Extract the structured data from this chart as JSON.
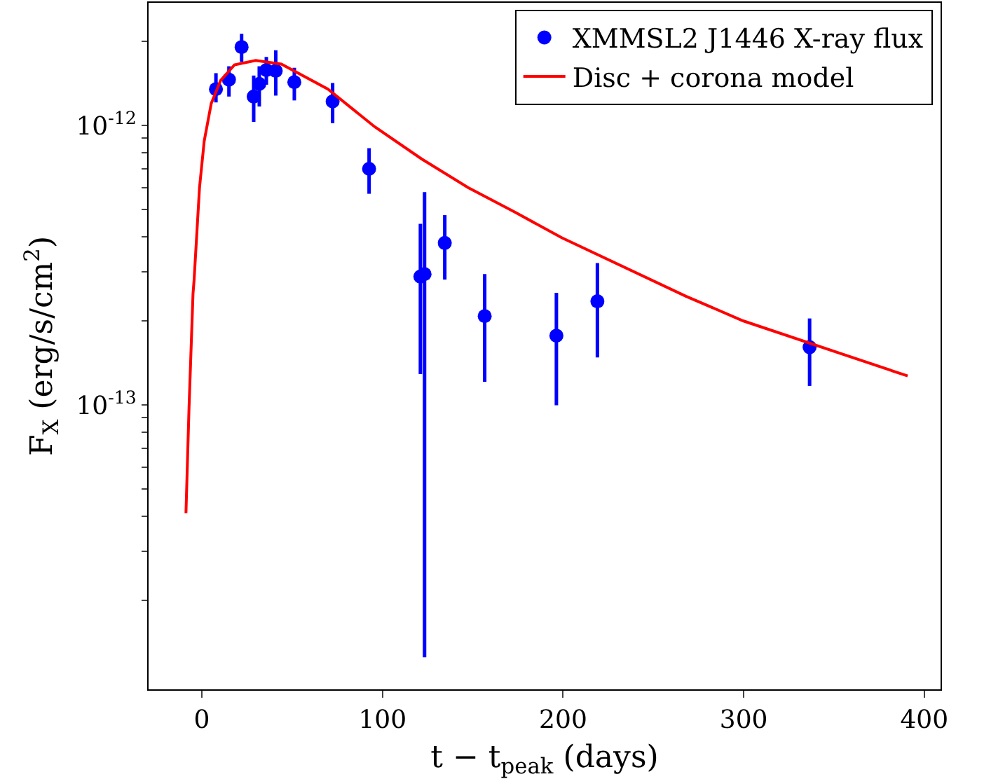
{
  "chart_data": {
    "type": "scatter",
    "xlabel": "t − t$_{peak}$ (days)",
    "ylabel": "F$_{X}$ (erg/s/cm$^{2}$)",
    "log": "y",
    "xlim": [
      -29.5,
      409
    ],
    "xticks": [
      0,
      100,
      200,
      300,
      400
    ],
    "ylim": [
      9.6e-15,
      2.75e-12
    ],
    "yticks": [
      {
        "value": 2e-14,
        "label": null
      },
      {
        "value": 3e-14,
        "label": null
      },
      {
        "value": 4e-14,
        "label": null
      },
      {
        "value": 5e-14,
        "label": null
      },
      {
        "value": 6e-14,
        "label": null
      },
      {
        "value": 7e-14,
        "label": null
      },
      {
        "value": 8e-14,
        "label": null
      },
      {
        "value": 9e-14,
        "label": null
      },
      {
        "value": 1e-13,
        "label": "10$^{-13}$"
      },
      {
        "value": 2e-13,
        "label": null
      },
      {
        "value": 3e-13,
        "label": null
      },
      {
        "value": 4e-13,
        "label": null
      },
      {
        "value": 5e-13,
        "label": null
      },
      {
        "value": 6e-13,
        "label": null
      },
      {
        "value": 7e-13,
        "label": null
      },
      {
        "value": 8e-13,
        "label": null
      },
      {
        "value": 9e-13,
        "label": null
      },
      {
        "value": 1e-12,
        "label": "10$^{-12}$"
      },
      {
        "value": 2e-12,
        "label": null
      }
    ],
    "grid": false,
    "legend": "top right",
    "series": [
      {
        "name": "XMMSL2 J1446 X-ray flux",
        "color": "#0000ff",
        "marker": "circle",
        "x": [
          7.8,
          15,
          22,
          28.7,
          31.8,
          35.7,
          40.9,
          51.2,
          72.4,
          92.6,
          121,
          123.3,
          134.5,
          156.6,
          196.3,
          219,
          336.5
        ],
        "values": [
          1.35e-12,
          1.46e-12,
          1.91e-12,
          1.27e-12,
          1.41e-12,
          1.58e-12,
          1.57e-12,
          1.43e-12,
          1.22e-12,
          7e-13,
          2.88e-13,
          2.94e-13,
          3.8e-13,
          2.08e-13,
          1.77e-13,
          2.35e-13,
          1.61e-13
        ],
        "errors": [
          [
            1.21e-12,
            1.54e-12
          ],
          [
            1.27e-12,
            1.63e-12
          ],
          [
            1.69e-12,
            2.13e-12
          ],
          [
            1.03e-12,
            1.51e-12
          ],
          [
            1.17e-12,
            1.63e-12
          ],
          [
            1.4e-12,
            1.76e-12
          ],
          [
            1.28e-12,
            1.86e-12
          ],
          [
            1.23e-12,
            1.61e-12
          ],
          [
            1.02e-12,
            1.42e-12
          ],
          [
            5.7e-13,
            8.3e-13
          ],
          [
            1.29e-13,
            4.45e-13
          ],
          [
            1.25e-14,
            5.78e-13
          ],
          [
            2.81e-13,
            4.78e-13
          ],
          [
            1.21e-13,
            2.94e-13
          ],
          [
            9.97e-14,
            2.52e-13
          ],
          [
            1.48e-13,
            3.22e-13
          ],
          [
            1.17e-13,
            2.04e-13
          ]
        ]
      },
      {
        "name": "Disc + corona model",
        "type": "line",
        "color": "#ff0000",
        "marker": "none",
        "line_style": "solid",
        "x": [
          -8.8,
          -7.1,
          -4.9,
          -4.3,
          -1.3,
          1.3,
          5.2,
          10.4,
          18.1,
          29.8,
          44,
          69.8,
          95.7,
          121.6,
          147.4,
          173.3,
          199.2,
          268,
          299.7,
          390.8
        ],
        "values": [
          4.1e-14,
          9.8e-14,
          2.5e-13,
          2.8e-13,
          6e-13,
          8.8e-13,
          1.2e-12,
          1.45e-12,
          1.65e-12,
          1.71e-12,
          1.66e-12,
          1.35e-12,
          9.9e-13,
          7.6e-13,
          6e-13,
          4.9e-13,
          3.97e-13,
          2.45e-13,
          2e-13,
          1.27e-13
        ]
      }
    ]
  }
}
